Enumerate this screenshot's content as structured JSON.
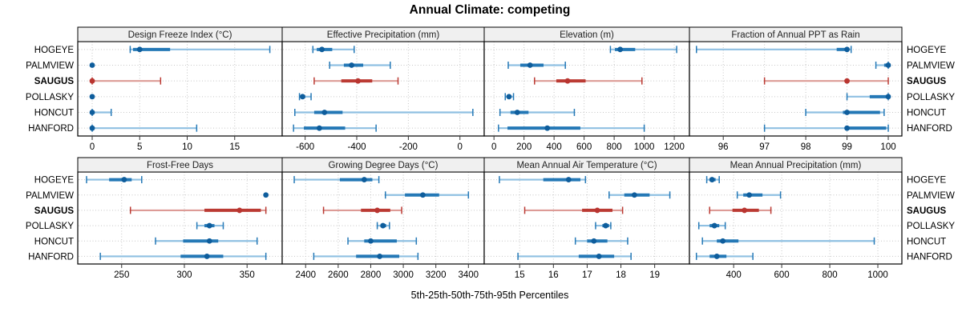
{
  "title": "Annual Climate: competing",
  "caption": "5th-25th-50th-75th-95th Percentiles",
  "sites": [
    "HOGEYE",
    "PALMVIEW",
    "SAUGUS",
    "POLLASKY",
    "HONCUT",
    "HANFORD"
  ],
  "bold_site": "SAUGUS",
  "percentiles": [
    5,
    25,
    50,
    75,
    95
  ],
  "colors": {
    "normal_dot": "#0e5d9c",
    "normal_main": "#2478b6",
    "normal_light": "#8fc0e2",
    "highlight_dot": "#b93530",
    "highlight_main": "#bb3a33",
    "highlight_light": "#dd9b96",
    "strip_bg": "#f0f0f0",
    "strip_text": "#222222",
    "grid": "#c6c6c6",
    "border": "#000000",
    "tick": "#333333"
  },
  "chart_data": [
    {
      "type": "dot-interval",
      "title": "Design Freeze Index (°C)",
      "xlim": [
        -1.52,
        20.0
      ],
      "ticks": [
        0,
        5,
        10,
        15
      ],
      "values": {
        "HOGEYE": [
          4,
          4.3,
          5,
          8.2,
          18.7
        ],
        "PALMVIEW": [
          0,
          0,
          0,
          0,
          0
        ],
        "SAUGUS": [
          0,
          0,
          0,
          0,
          7.2
        ],
        "POLLASKY": [
          0,
          0,
          0,
          0,
          0
        ],
        "HONCUT": [
          0,
          0,
          0,
          0,
          2
        ],
        "HANFORD": [
          0,
          0,
          0,
          0,
          11
        ]
      }
    },
    {
      "type": "dot-interval",
      "title": "Effective Precipitation (mm)",
      "xlim": [
        -689,
        94
      ],
      "ticks": [
        -600,
        -400,
        -200,
        0
      ],
      "values": {
        "HOGEYE": [
          -570,
          -555,
          -535,
          -495,
          -410
        ],
        "PALMVIEW": [
          -505,
          -450,
          -420,
          -375,
          -270
        ],
        "SAUGUS": [
          -565,
          -460,
          -395,
          -340,
          -240
        ],
        "POLLASKY": [
          -622,
          -616,
          -610,
          -600,
          -577
        ],
        "HONCUT": [
          -640,
          -565,
          -525,
          -455,
          50
        ],
        "HANFORD": [
          -645,
          -605,
          -545,
          -445,
          -325
        ]
      }
    },
    {
      "type": "dot-interval",
      "title": "Elevation (m)",
      "xlim": [
        -65,
        1301
      ],
      "ticks": [
        0,
        200,
        400,
        600,
        800,
        1000,
        1200
      ],
      "values": {
        "HOGEYE": [
          775,
          805,
          840,
          940,
          1216
        ],
        "PALMVIEW": [
          95,
          175,
          240,
          330,
          475
        ],
        "SAUGUS": [
          270,
          415,
          490,
          610,
          985
        ],
        "POLLASKY": [
          75,
          90,
          100,
          112,
          130
        ],
        "HONCUT": [
          40,
          110,
          155,
          230,
          535
        ],
        "HANFORD": [
          30,
          90,
          355,
          575,
          1000
        ]
      }
    },
    {
      "type": "dot-interval",
      "title": "Fraction of Annual PPT as Rain",
      "xlim": [
        95.18,
        100.33
      ],
      "ticks": [
        96,
        97,
        98,
        99,
        100
      ],
      "values": {
        "HOGEYE": [
          95.35,
          98.75,
          99,
          99.05,
          99.1
        ],
        "PALMVIEW": [
          99.7,
          99.9,
          100,
          100,
          100
        ],
        "SAUGUS": [
          97,
          98.95,
          99,
          99.05,
          100
        ],
        "POLLASKY": [
          99,
          99.55,
          100,
          100,
          100
        ],
        "HONCUT": [
          98,
          98.9,
          99,
          99.8,
          99.9
        ],
        "HANFORD": [
          97,
          98.95,
          99,
          99.95,
          100
        ]
      }
    },
    {
      "type": "dot-interval",
      "title": "Frost-Free Days",
      "xlim": [
        215,
        378
      ],
      "ticks": [
        250,
        300,
        350
      ],
      "values": {
        "HOGEYE": [
          222,
          240,
          252,
          258,
          266
        ],
        "PALMVIEW": [
          365,
          365,
          365,
          365,
          365
        ],
        "SAUGUS": [
          257,
          316,
          344,
          361,
          365
        ],
        "POLLASKY": [
          310,
          316,
          320,
          324,
          331
        ],
        "HONCUT": [
          277,
          299,
          320,
          327,
          358
        ],
        "HANFORD": [
          233,
          297,
          318,
          331,
          365
        ]
      }
    },
    {
      "type": "dot-interval",
      "title": "Growing Degree Days (°C)",
      "xlim": [
        2256,
        3497
      ],
      "ticks": [
        2400,
        2600,
        2800,
        3000,
        3200,
        3400
      ],
      "values": {
        "HOGEYE": [
          2330,
          2610,
          2760,
          2810,
          2850
        ],
        "PALMVIEW": [
          2890,
          3010,
          3120,
          3220,
          3400
        ],
        "SAUGUS": [
          2510,
          2740,
          2840,
          2920,
          2990
        ],
        "POLLASKY": [
          2840,
          2860,
          2875,
          2895,
          2915
        ],
        "HONCUT": [
          2660,
          2760,
          2800,
          2960,
          3080
        ],
        "HANFORD": [
          2450,
          2710,
          2855,
          2975,
          3090
        ]
      }
    },
    {
      "type": "dot-interval",
      "title": "Mean Annual Air Temperature (°C)",
      "xlim": [
        13.95,
        20.03
      ],
      "ticks": [
        15,
        16,
        17,
        18,
        19
      ],
      "values": {
        "HOGEYE": [
          14.4,
          15.7,
          16.45,
          16.8,
          16.95
        ],
        "PALMVIEW": [
          17.65,
          18.1,
          18.4,
          18.85,
          19.45
        ],
        "SAUGUS": [
          15.15,
          16.85,
          17.3,
          17.75,
          18.05
        ],
        "POLLASKY": [
          17.25,
          17.45,
          17.55,
          17.65,
          17.7
        ],
        "HONCUT": [
          16.65,
          17.0,
          17.2,
          17.6,
          18.2
        ],
        "HANFORD": [
          14.95,
          16.75,
          17.35,
          17.8,
          18.3
        ]
      }
    },
    {
      "type": "dot-interval",
      "title": "Mean Annual Precipitation (mm)",
      "xlim": [
        216,
        1100
      ],
      "ticks": [
        400,
        600,
        800,
        1000
      ],
      "values": {
        "HOGEYE": [
          288,
          300,
          310,
          325,
          340
        ],
        "PALMVIEW": [
          415,
          440,
          465,
          520,
          595
        ],
        "SAUGUS": [
          300,
          395,
          445,
          505,
          555
        ],
        "POLLASKY": [
          255,
          300,
          320,
          340,
          365
        ],
        "HONCUT": [
          270,
          330,
          355,
          420,
          985
        ],
        "HANFORD": [
          245,
          300,
          330,
          370,
          480
        ]
      }
    }
  ]
}
